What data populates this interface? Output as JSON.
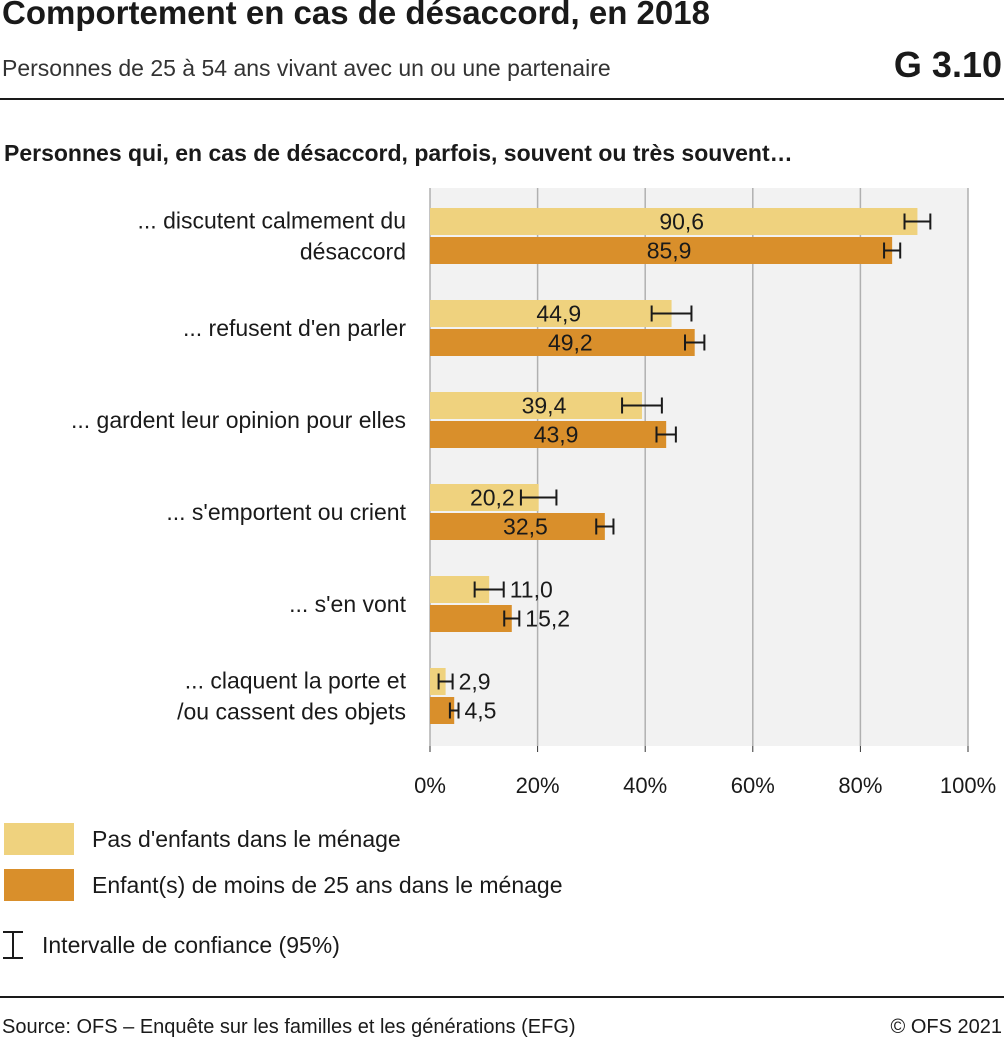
{
  "header": {
    "title": "Comportement en cas de désaccord, en 2018",
    "subtitle": "Personnes de 25 à 54 ans vivant avec un ou une partenaire",
    "code": "G 3.10"
  },
  "chart_heading": "Personnes qui, en cas de désaccord, parfois, souvent ou très souvent…",
  "colors": {
    "no_children": "#efd27e",
    "children": "#d98f2b",
    "plot_bg": "#f2f2f2",
    "grid": "#b0b0b0"
  },
  "chart_data": {
    "type": "bar",
    "orientation": "horizontal",
    "categories": [
      [
        "... discutent calmement du",
        "désaccord"
      ],
      [
        "... refusent d'en parler"
      ],
      [
        "... gardent leur opinion pour elles"
      ],
      [
        "... s'emportent ou crient"
      ],
      [
        "... s'en vont"
      ],
      [
        "... claquent la porte et",
        "/ou cassent des objets"
      ]
    ],
    "series": [
      {
        "name": "Pas d'enfants dans le ménage",
        "values": [
          90.6,
          44.9,
          39.4,
          20.2,
          11.0,
          2.9
        ],
        "labels": [
          "90,6",
          "44,9",
          "39,4",
          "20,2",
          "11,0",
          "2,9"
        ],
        "ci_low": [
          88.2,
          41.2,
          35.7,
          16.9,
          8.3,
          1.6
        ],
        "ci_high": [
          93.0,
          48.6,
          43.1,
          23.5,
          13.7,
          4.2
        ]
      },
      {
        "name": "Enfant(s) de moins de 25 ans dans le ménage",
        "values": [
          85.9,
          49.2,
          43.9,
          32.5,
          15.2,
          4.5
        ],
        "labels": [
          "85,9",
          "49,2",
          "43,9",
          "32,5",
          "15,2",
          "4,5"
        ],
        "ci_low": [
          84.4,
          47.4,
          42.1,
          30.9,
          13.8,
          3.7
        ],
        "ci_high": [
          87.4,
          51.0,
          45.7,
          34.1,
          16.6,
          5.3
        ]
      }
    ],
    "xlim": [
      0,
      100
    ],
    "ticks": [
      0,
      20,
      40,
      60,
      80,
      100
    ],
    "tick_labels": [
      "0%",
      "20%",
      "40%",
      "60%",
      "80%",
      "100%"
    ],
    "grid": true,
    "legend_position": "bottom-left"
  },
  "legend": {
    "ci_label": "Intervalle de confiance (95%)"
  },
  "footer": {
    "source": "Source: OFS – Enquête sur les familles et les générations (EFG)",
    "copyright": "© OFS 2021"
  }
}
